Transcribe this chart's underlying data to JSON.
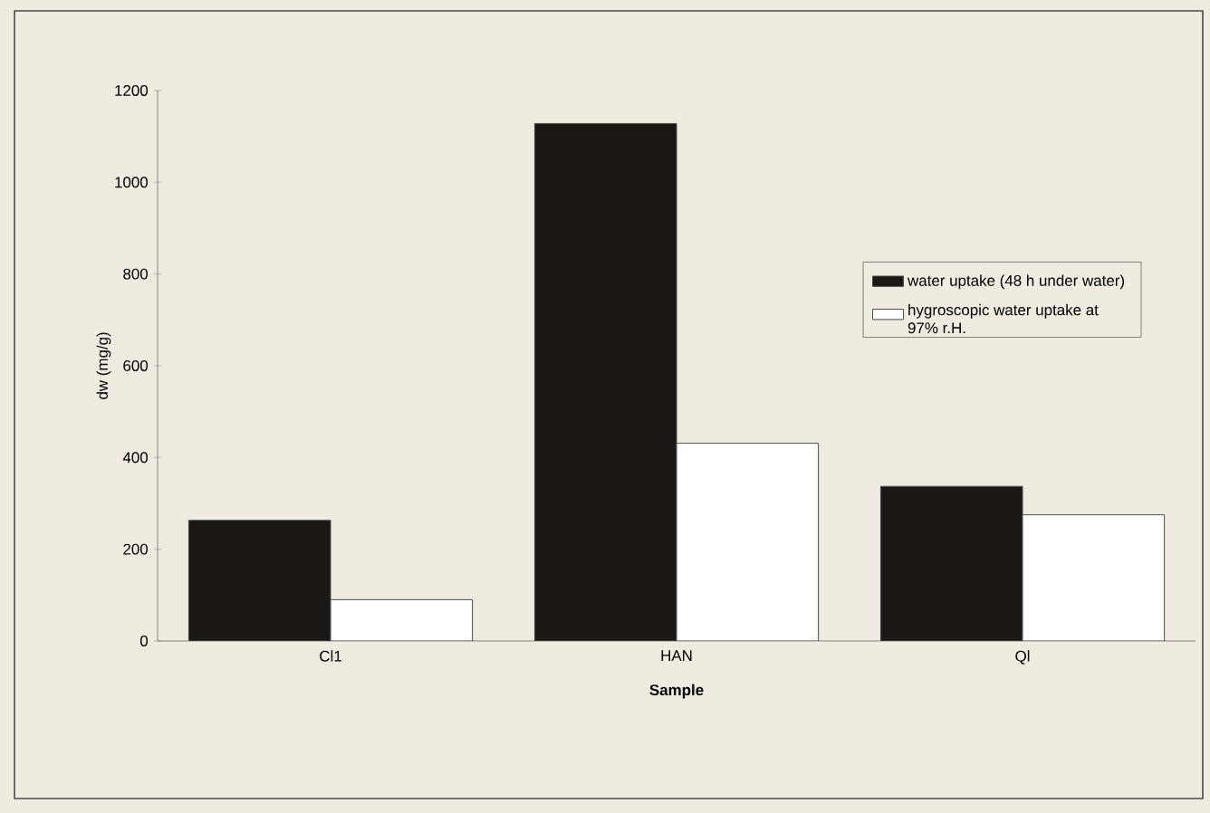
{
  "chart_data": {
    "type": "bar",
    "xlabel": "Sample",
    "ylabel": "dw (mg/g)",
    "categories": [
      "Cl1",
      "HAN",
      "Ql"
    ],
    "series": [
      {
        "name": "water uptake (48 h under water)",
        "color": "#1a1715",
        "values": [
          263,
          1128,
          337
        ]
      },
      {
        "name": "hygroscopic water uptake at 97% r.H.",
        "color": "#ffffff",
        "values": [
          90,
          431,
          275
        ]
      }
    ],
    "ylim": [
      0,
      1200
    ],
    "yticks": [
      0,
      200,
      400,
      600,
      800,
      1000,
      1200
    ],
    "grid": false,
    "legend": "right"
  }
}
